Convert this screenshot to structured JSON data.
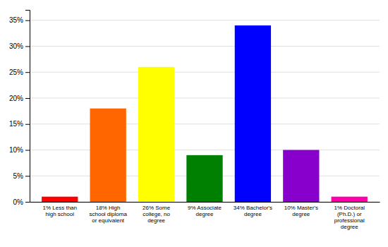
{
  "chart_data": {
    "type": "bar",
    "categories": [
      "1% Less than\nhigh school",
      "18% High\nschool diploma\nor equivalent",
      "26% Some\ncollege, no\ndegree",
      "9% Associate\ndegree",
      "34% Bachelor's\ndegree",
      "10% Master's\ndegree",
      "1% Doctoral\n(Ph.D.) or\nprofessional\ndegree"
    ],
    "values": [
      1,
      18,
      26,
      9,
      34,
      10,
      1
    ],
    "colors": [
      "#ff0000",
      "#ff6600",
      "#ffff00",
      "#008000",
      "#0000ff",
      "#8800cc",
      "#ff00aa"
    ],
    "ylim": [
      0,
      37
    ],
    "yticks": [
      {
        "value": 0,
        "label": "0%"
      },
      {
        "value": 5,
        "label": "5%"
      },
      {
        "value": 10,
        "label": "10%"
      },
      {
        "value": 15,
        "label": "15%"
      },
      {
        "value": 20,
        "label": "20%"
      },
      {
        "value": 25,
        "label": "25%"
      },
      {
        "value": 30,
        "label": "30%"
      },
      {
        "value": 35,
        "label": "35%"
      }
    ],
    "grid": true
  }
}
